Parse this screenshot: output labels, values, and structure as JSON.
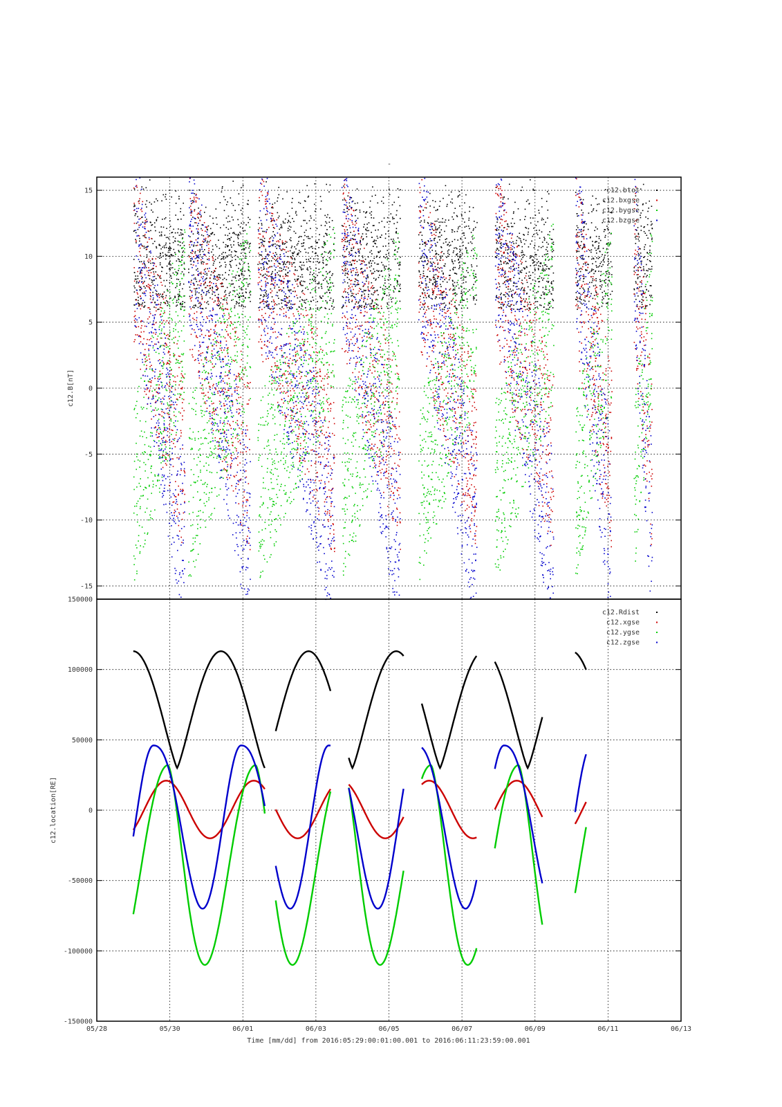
{
  "top_title": "-",
  "xaxis": {
    "label": "Time [mm/dd]  from 2016:05:29:00:01:00.001  to  2016:06:11:23:59:00.001",
    "ticks": [
      "05/28",
      "05/30",
      "06/01",
      "06/03",
      "06/05",
      "06/07",
      "06/09",
      "06/11",
      "06/13"
    ],
    "range_days": [
      -1,
      15
    ]
  },
  "chart_data": [
    {
      "type": "scatter",
      "ylabel": "c12.B[nT]",
      "ylim": [
        -16,
        16
      ],
      "yticks": [
        15,
        10,
        5,
        0,
        -5,
        -10,
        -15
      ],
      "grid": true,
      "legend_placement": "top-right",
      "series": [
        {
          "name": "c12.btot",
          "color": "#000000"
        },
        {
          "name": "c12.bxgse",
          "color": "#cc0000"
        },
        {
          "name": "c12.bygse",
          "color": "#00cc00"
        },
        {
          "name": "c12.bzgse",
          "color": "#0000cc"
        }
      ],
      "data_windows_days": [
        [
          0.0,
          1.4
        ],
        [
          1.5,
          3.2
        ],
        [
          3.4,
          5.5
        ],
        [
          5.7,
          7.3
        ],
        [
          7.8,
          9.4
        ],
        [
          9.9,
          11.5
        ],
        [
          12.1,
          13.1
        ],
        [
          13.7,
          14.2
        ]
      ]
    },
    {
      "type": "line",
      "ylabel": "c12.location[RE]",
      "ylim": [
        -150000,
        150000
      ],
      "yticks": [
        150000,
        100000,
        50000,
        0,
        -50000,
        -100000,
        -150000
      ],
      "grid": true,
      "legend_placement": "top-right",
      "series": [
        {
          "name": "c12.Rdist",
          "color": "#000000"
        },
        {
          "name": "c12.xgse",
          "color": "#cc0000"
        },
        {
          "name": "c12.ygse",
          "color": "#00cc00"
        },
        {
          "name": "c12.zgse",
          "color": "#0000cc"
        }
      ],
      "orbit": {
        "period_days": 2.4,
        "rdist": {
          "min": 30000,
          "max": 113000,
          "max_at_day": 0.0
        },
        "xgse": {
          "min": -20000,
          "max": 21000
        },
        "ygse": {
          "min": -110000,
          "max": 32000
        },
        "zgse": {
          "min": -70000,
          "max": 46000
        }
      },
      "segments_days": [
        [
          0.0,
          3.6
        ],
        [
          3.9,
          5.4
        ],
        [
          5.9,
          7.4
        ],
        [
          7.9,
          9.4
        ],
        [
          9.9,
          11.2
        ],
        [
          12.1,
          12.4
        ]
      ]
    }
  ]
}
